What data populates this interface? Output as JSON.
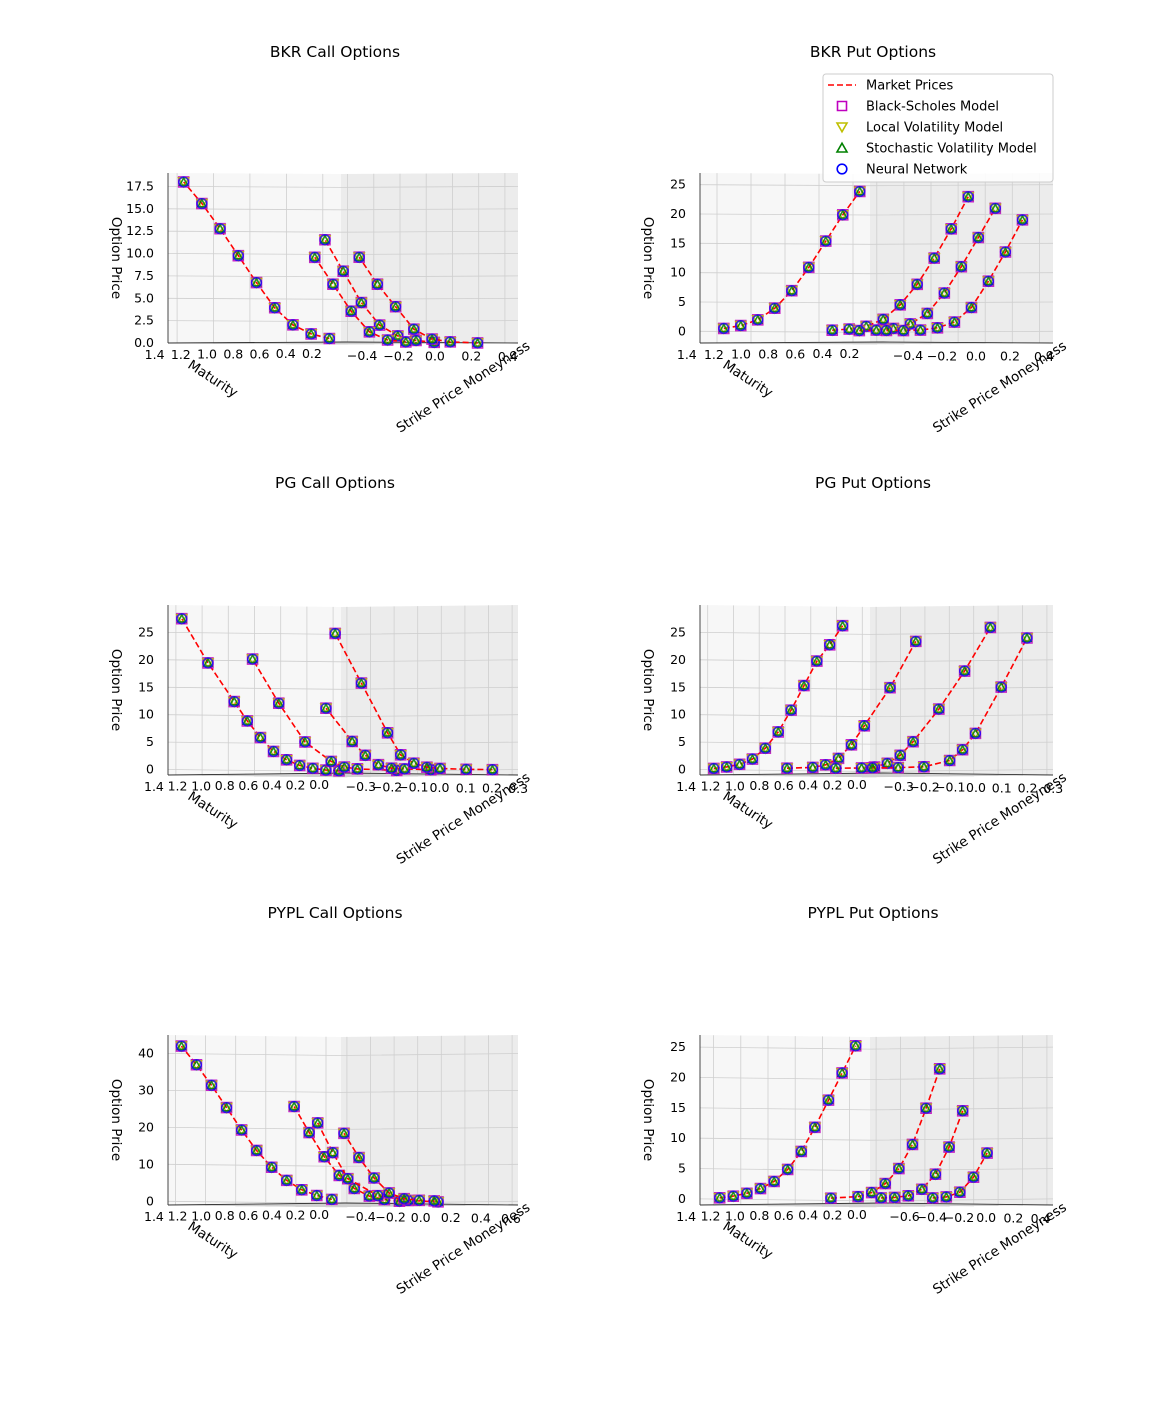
{
  "figure_legend": {
    "entries": [
      {
        "key": "market",
        "label": "Market Prices",
        "color": "#ff0000",
        "marker": "dashed-line"
      },
      {
        "key": "bs",
        "label": "Black-Scholes Model",
        "color": "#bf00bf",
        "marker": "square"
      },
      {
        "key": "lv",
        "label": "Local Volatility Model",
        "color": "#bfbf00",
        "marker": "triangle-down"
      },
      {
        "key": "sv",
        "label": "Stochastic Volatility Model",
        "color": "#008000",
        "marker": "triangle-up"
      },
      {
        "key": "nn",
        "label": "Neural Network",
        "color": "#0000ff",
        "marker": "circle"
      }
    ]
  },
  "chart_data": [
    {
      "type": "scatter3d",
      "title": "BKR Call Options",
      "xlabel": "Strike Price Moneyness",
      "ylabel": "Maturity",
      "zlabel": "Option Price",
      "xlim": [
        -0.45,
        0.5
      ],
      "ylim": [
        0.1,
        1.45
      ],
      "zlim": [
        0,
        19
      ],
      "xticks": [
        -0.4,
        -0.2,
        0.0,
        0.2,
        0.4
      ],
      "xticklabels": [
        "−0.4",
        "−0.2",
        "0.0",
        "0.2",
        "0.4"
      ],
      "yticks": [
        0.2,
        0.4,
        0.6,
        0.8,
        1.0,
        1.2,
        1.4
      ],
      "yticklabels": [
        "0.2",
        "0.4",
        "0.6",
        "0.8",
        "1.0",
        "1.2",
        "1.4"
      ],
      "zticks": [
        0,
        2.5,
        5,
        7.5,
        10,
        12.5,
        15,
        17.5
      ],
      "zticklabels": [
        "0.0",
        "2.5",
        "5.0",
        "7.5",
        "10.0",
        "12.5",
        "15.0",
        "17.5"
      ],
      "series": [
        {
          "maturity": 1.4,
          "x": [
            0.4,
            0.3,
            0.2,
            0.1,
            0.0,
            -0.1,
            -0.2,
            -0.3,
            -0.4
          ],
          "z": [
            0.6,
            1.1,
            2.1,
            4.0,
            6.8,
            9.8,
            12.8,
            15.6,
            18.0
          ]
        },
        {
          "maturity": 0.6,
          "x": [
            0.4,
            0.3,
            0.2,
            0.1,
            0.0,
            -0.1,
            -0.2
          ],
          "z": [
            0.1,
            0.3,
            0.8,
            2.0,
            4.5,
            8.0,
            11.5
          ]
        },
        {
          "maturity": 0.4,
          "x": [
            0.1,
            0.0,
            -0.1,
            -0.2,
            -0.3,
            -0.4
          ],
          "z": [
            0.1,
            0.3,
            1.2,
            3.5,
            6.5,
            9.5
          ]
        },
        {
          "maturity": 0.2,
          "x": [
            0.35,
            0.2,
            0.1,
            0.0,
            -0.1,
            -0.2,
            -0.3
          ],
          "z": [
            0.0,
            0.1,
            0.4,
            1.5,
            4.0,
            6.5,
            9.5
          ]
        }
      ]
    },
    {
      "type": "scatter3d",
      "title": "BKR Put Options",
      "xlabel": "Strike Price Moneyness",
      "ylabel": "Maturity",
      "zlabel": "Option Price",
      "xlim": [
        -0.5,
        0.5
      ],
      "ylim": [
        0.1,
        1.45
      ],
      "zlim": [
        -2,
        27
      ],
      "xticks": [
        -0.4,
        -0.2,
        0.0,
        0.2,
        0.4
      ],
      "xticklabels": [
        "−0.4",
        "−0.2",
        "0.0",
        "0.2",
        "0.4"
      ],
      "yticks": [
        0.2,
        0.4,
        0.6,
        0.8,
        1.0,
        1.2,
        1.4
      ],
      "yticklabels": [
        "0.2",
        "0.4",
        "0.6",
        "0.8",
        "1.0",
        "1.2",
        "1.4"
      ],
      "zticks": [
        0,
        5,
        10,
        15,
        20,
        25
      ],
      "zticklabels": [
        "0",
        "5",
        "10",
        "15",
        "20",
        "25"
      ],
      "series": [
        {
          "maturity": 1.4,
          "x": [
            -0.4,
            -0.3,
            -0.2,
            -0.1,
            0.0,
            0.1,
            0.2,
            0.3,
            0.4
          ],
          "z": [
            0.5,
            1.0,
            2.0,
            4.0,
            7.0,
            11.0,
            15.5,
            20.0,
            24.0
          ]
        },
        {
          "maturity": 0.6,
          "x": [
            -0.4,
            -0.3,
            -0.2,
            -0.1,
            0.0,
            0.1,
            0.2,
            0.3,
            0.4
          ],
          "z": [
            0.1,
            0.3,
            0.8,
            2.0,
            4.5,
            8.0,
            12.5,
            17.5,
            23.0
          ]
        },
        {
          "maturity": 0.4,
          "x": [
            -0.4,
            -0.3,
            -0.2,
            -0.1,
            0.0,
            0.1,
            0.2,
            0.3,
            0.4
          ],
          "z": [
            0.0,
            0.1,
            0.4,
            1.2,
            3.0,
            6.5,
            11.0,
            16.0,
            21.0
          ]
        },
        {
          "maturity": 0.2,
          "x": [
            -0.4,
            -0.3,
            -0.2,
            -0.1,
            0.0,
            0.1,
            0.2,
            0.3,
            0.4
          ],
          "z": [
            0.0,
            0.0,
            0.1,
            0.5,
            1.5,
            4.0,
            8.5,
            13.5,
            19.0
          ]
        }
      ]
    },
    {
      "type": "scatter3d",
      "title": "PG Call Options",
      "xlabel": "Strike Price Moneyness",
      "ylabel": "Maturity",
      "zlabel": "Option Price",
      "xlim": [
        -0.33,
        0.33
      ],
      "ylim": [
        -0.05,
        1.45
      ],
      "zlim": [
        -1,
        30
      ],
      "xticks": [
        -0.3,
        -0.2,
        -0.1,
        0.0,
        0.1,
        0.2,
        0.3
      ],
      "xticklabels": [
        "−0.3",
        "−0.2",
        "−0.1",
        "0.0",
        "0.1",
        "0.2",
        "0.3"
      ],
      "yticks": [
        0.0,
        0.2,
        0.4,
        0.6,
        0.8,
        1.0,
        1.2,
        1.4
      ],
      "yticklabels": [
        "0.0",
        "0.2",
        "0.4",
        "0.6",
        "0.8",
        "1.0",
        "1.2",
        "1.4"
      ],
      "zticks": [
        0,
        5,
        10,
        15,
        20,
        25
      ],
      "zticklabels": [
        "0",
        "5",
        "10",
        "15",
        "20",
        "25"
      ],
      "series": [
        {
          "maturity": 1.4,
          "x": [
            0.3,
            0.25,
            0.2,
            0.15,
            0.1,
            0.05,
            0.0,
            -0.05,
            -0.1,
            -0.2,
            -0.3
          ],
          "z": [
            0.1,
            0.2,
            0.5,
            1.0,
            2.0,
            3.5,
            6.0,
            9.0,
            12.5,
            19.5,
            27.5
          ]
        },
        {
          "maturity": 0.8,
          "x": [
            0.25,
            0.1,
            0.05,
            0.0,
            -0.1,
            -0.2,
            -0.3
          ],
          "z": [
            0.0,
            0.2,
            0.5,
            1.5,
            5.0,
            12.0,
            20.0
          ]
        },
        {
          "maturity": 0.4,
          "x": [
            0.2,
            0.1,
            0.05,
            0.0,
            -0.05,
            -0.1,
            -0.2
          ],
          "z": [
            0.0,
            0.1,
            0.2,
            0.8,
            2.5,
            5.0,
            11.0
          ]
        },
        {
          "maturity": 0.1,
          "x": [
            0.3,
            0.2,
            0.1,
            0.05,
            0.0,
            -0.05,
            -0.1,
            -0.2,
            -0.3
          ],
          "z": [
            0.0,
            0.0,
            0.1,
            0.3,
            1.0,
            2.5,
            6.5,
            15.5,
            24.5
          ]
        }
      ]
    },
    {
      "type": "scatter3d",
      "title": "PG Put Options",
      "xlabel": "Strike Price Moneyness",
      "ylabel": "Maturity",
      "zlabel": "Option Price",
      "xlim": [
        -0.33,
        0.33
      ],
      "ylim": [
        -0.05,
        1.45
      ],
      "zlim": [
        -1,
        30
      ],
      "xticks": [
        -0.3,
        -0.2,
        -0.1,
        0.0,
        0.1,
        0.2,
        0.3
      ],
      "xticklabels": [
        "−0.3",
        "−0.2",
        "−0.1",
        "0.0",
        "0.1",
        "0.2",
        "0.3"
      ],
      "yticks": [
        0.0,
        0.2,
        0.4,
        0.6,
        0.8,
        1.0,
        1.2,
        1.4
      ],
      "yticklabels": [
        "0.0",
        "0.2",
        "0.4",
        "0.6",
        "0.8",
        "1.0",
        "1.2",
        "1.4"
      ],
      "zticks": [
        0,
        5,
        10,
        15,
        20,
        25
      ],
      "zticklabels": [
        "0",
        "5",
        "10",
        "15",
        "20",
        "25"
      ],
      "series": [
        {
          "maturity": 1.4,
          "x": [
            -0.3,
            -0.25,
            -0.2,
            -0.15,
            -0.1,
            -0.05,
            0.0,
            0.05,
            0.1,
            0.15,
            0.2
          ],
          "z": [
            0.2,
            0.5,
            1.0,
            2.0,
            4.0,
            7.0,
            11.0,
            15.5,
            20.0,
            23.0,
            26.5
          ]
        },
        {
          "maturity": 0.8,
          "x": [
            -0.3,
            -0.2,
            -0.15,
            -0.1,
            -0.05,
            0.0,
            0.1,
            0.2
          ],
          "z": [
            0.1,
            0.3,
            0.8,
            2.0,
            4.5,
            8.0,
            15.0,
            23.5
          ]
        },
        {
          "maturity": 0.4,
          "x": [
            -0.3,
            -0.2,
            -0.15,
            -0.1,
            -0.05,
            0.0,
            0.1,
            0.2,
            0.3
          ],
          "z": [
            0.0,
            0.1,
            0.3,
            1.0,
            2.5,
            5.0,
            11.0,
            18.0,
            26.0
          ]
        },
        {
          "maturity": 0.1,
          "x": [
            -0.3,
            -0.2,
            -0.1,
            0.0,
            0.05,
            0.1,
            0.2,
            0.3
          ],
          "z": [
            0.0,
            0.1,
            0.3,
            1.5,
            3.5,
            6.5,
            15.0,
            24.0
          ]
        }
      ]
    },
    {
      "type": "scatter3d",
      "title": "PYPL Call Options",
      "xlabel": "Strike Price Moneyness",
      "ylabel": "Maturity",
      "zlabel": "Option Price",
      "xlim": [
        -0.45,
        0.7
      ],
      "ylim": [
        -0.05,
        1.45
      ],
      "zlim": [
        -1,
        45
      ],
      "xticks": [
        -0.4,
        -0.2,
        0.0,
        0.2,
        0.4,
        0.6
      ],
      "xticklabels": [
        "−0.4",
        "−0.2",
        "0.0",
        "0.2",
        "0.4",
        "0.6"
      ],
      "yticks": [
        0.0,
        0.2,
        0.4,
        0.6,
        0.8,
        1.0,
        1.2,
        1.4
      ],
      "yticklabels": [
        "0.0",
        "0.2",
        "0.4",
        "0.6",
        "0.8",
        "1.0",
        "1.2",
        "1.4"
      ],
      "zticks": [
        0,
        10,
        20,
        30,
        40
      ],
      "zticklabels": [
        "0",
        "10",
        "20",
        "30",
        "40"
      ],
      "series": [
        {
          "maturity": 1.4,
          "x": [
            0.6,
            0.5,
            0.4,
            0.3,
            0.2,
            0.1,
            0.0,
            -0.1,
            -0.2,
            -0.3,
            -0.4
          ],
          "z": [
            1.0,
            2.0,
            3.5,
            6.0,
            9.5,
            14.0,
            19.5,
            25.5,
            31.5,
            37.0,
            42.0
          ]
        },
        {
          "maturity": 0.7,
          "x": [
            0.5,
            0.4,
            0.3,
            0.2,
            0.1,
            0.0,
            -0.1,
            -0.2
          ],
          "z": [
            0.2,
            0.6,
            1.5,
            3.5,
            7.0,
            12.0,
            18.5,
            25.5
          ]
        },
        {
          "maturity": 0.5,
          "x": [
            0.6,
            0.4,
            0.2,
            0.0,
            -0.1,
            -0.2
          ],
          "z": [
            0.0,
            0.3,
            1.5,
            6.0,
            13.0,
            21.0
          ]
        },
        {
          "maturity": 0.15,
          "x": [
            0.3,
            0.2,
            0.1,
            0.0,
            -0.1,
            -0.2,
            -0.3
          ],
          "z": [
            0.0,
            0.1,
            0.5,
            2.0,
            6.0,
            11.5,
            18.0
          ]
        }
      ]
    },
    {
      "type": "scatter3d",
      "title": "PYPL Put Options",
      "xlabel": "Strike Price Moneyness",
      "ylabel": "Maturity",
      "zlabel": "Option Price",
      "xlim": [
        -0.7,
        0.55
      ],
      "ylim": [
        -0.05,
        1.45
      ],
      "zlim": [
        -1,
        27
      ],
      "xticks": [
        -0.6,
        -0.4,
        -0.2,
        0.0,
        0.2,
        0.4
      ],
      "xticklabels": [
        "−0.6",
        "−0.4",
        "−0.2",
        "0.0",
        "0.2",
        "0.4"
      ],
      "yticks": [
        0.0,
        0.2,
        0.4,
        0.6,
        0.8,
        1.0,
        1.2,
        1.4
      ],
      "yticklabels": [
        "0.0",
        "0.2",
        "0.4",
        "0.6",
        "0.8",
        "1.0",
        "1.2",
        "1.4"
      ],
      "zticks": [
        0,
        5,
        10,
        15,
        20,
        25
      ],
      "zticklabels": [
        "0",
        "5",
        "10",
        "15",
        "20",
        "25"
      ],
      "series": [
        {
          "maturity": 1.4,
          "x": [
            -0.6,
            -0.5,
            -0.4,
            -0.3,
            -0.2,
            -0.1,
            0.0,
            0.1,
            0.2,
            0.3,
            0.4
          ],
          "z": [
            0.2,
            0.5,
            1.0,
            1.8,
            3.0,
            5.0,
            8.0,
            12.0,
            16.5,
            21.0,
            25.5
          ]
        },
        {
          "maturity": 0.6,
          "x": [
            -0.5,
            -0.3,
            -0.2,
            -0.1,
            0.0,
            0.1,
            0.2,
            0.3
          ],
          "z": [
            0.0,
            0.3,
            1.0,
            2.5,
            5.0,
            9.0,
            15.0,
            21.5
          ]
        },
        {
          "maturity": 0.3,
          "x": [
            -0.4,
            -0.3,
            -0.2,
            -0.1,
            0.0,
            0.1,
            0.2
          ],
          "z": [
            0.0,
            0.1,
            0.4,
            1.5,
            4.0,
            8.5,
            14.5
          ]
        },
        {
          "maturity": 0.1,
          "x": [
            -0.2,
            -0.1,
            0.0,
            0.1,
            0.2
          ],
          "z": [
            0.0,
            0.2,
            1.0,
            3.5,
            7.5
          ]
        }
      ]
    }
  ]
}
